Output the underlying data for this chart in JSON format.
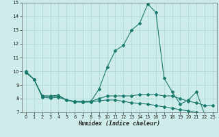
{
  "xlabel": "Humidex (Indice chaleur)",
  "bg_color": "#ceecea",
  "grid_color": "#aed8d4",
  "line_color": "#1a7a6e",
  "xlim": [
    -0.5,
    23.5
  ],
  "ylim": [
    7,
    15
  ],
  "yticks": [
    7,
    8,
    9,
    10,
    11,
    12,
    13,
    14,
    15
  ],
  "xticks": [
    0,
    1,
    2,
    3,
    4,
    5,
    6,
    7,
    8,
    9,
    10,
    11,
    12,
    13,
    14,
    15,
    16,
    17,
    18,
    19,
    20,
    21,
    22,
    23
  ],
  "line1": [
    10.0,
    9.4,
    8.2,
    8.2,
    8.25,
    7.9,
    7.8,
    7.8,
    7.8,
    8.7,
    10.3,
    11.5,
    11.9,
    13.0,
    13.5,
    14.9,
    14.3,
    9.5,
    8.5,
    7.6,
    7.9,
    8.5,
    6.85,
    6.9
  ],
  "line2": [
    9.9,
    9.4,
    8.2,
    8.15,
    8.2,
    7.9,
    7.8,
    7.75,
    7.8,
    8.0,
    8.2,
    8.2,
    8.2,
    8.2,
    8.3,
    8.3,
    8.3,
    8.2,
    8.2,
    8.0,
    7.8,
    7.7,
    7.5,
    7.5
  ],
  "line3": [
    9.9,
    9.4,
    8.1,
    8.05,
    8.1,
    7.9,
    7.75,
    7.75,
    7.75,
    7.85,
    7.9,
    7.9,
    7.8,
    7.7,
    7.65,
    7.6,
    7.5,
    7.4,
    7.3,
    7.2,
    7.1,
    7.0,
    6.85,
    6.85
  ]
}
